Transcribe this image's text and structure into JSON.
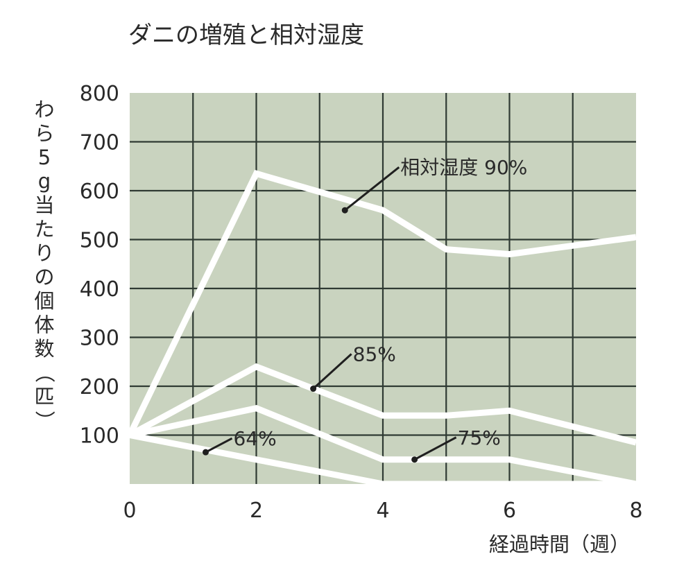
{
  "chart_data": {
    "type": "line",
    "title": "ダニの増殖と相対湿度",
    "xlabel": "経過時間（週）",
    "ylabel": "わら5g当たりの個体数（匹）",
    "x": [
      0,
      2,
      4,
      5,
      6,
      8
    ],
    "xticks": [
      "0",
      "2",
      "4",
      "6",
      "8"
    ],
    "yticks": [
      "100",
      "200",
      "300",
      "400",
      "500",
      "600",
      "700",
      "800"
    ],
    "xlim": [
      0,
      8
    ],
    "ylim": [
      0,
      800
    ],
    "grid": true,
    "series": [
      {
        "name": "相対湿度 90%",
        "values": [
          100,
          635,
          560,
          480,
          470,
          505
        ]
      },
      {
        "name": "85%",
        "values": [
          100,
          240,
          140,
          140,
          150,
          85
        ]
      },
      {
        "name": "75%",
        "values": [
          100,
          155,
          50,
          50,
          50,
          0
        ]
      },
      {
        "name": "64%",
        "values": [
          100,
          50,
          0,
          0,
          0,
          0
        ]
      }
    ],
    "annotations": [
      {
        "text": "相対湿度 90%",
        "series": 0,
        "x": 3.4,
        "y": 560
      },
      {
        "text": "85%",
        "series": 1,
        "x": 2.9,
        "y": 195
      },
      {
        "text": "75%",
        "series": 2,
        "x": 4.5,
        "y": 50
      },
      {
        "text": "64%",
        "series": 3,
        "x": 1.2,
        "y": 65
      }
    ],
    "colors": {
      "plot_background": "#c9d3bf",
      "grid": "#2f3a33",
      "line": "#ffffff",
      "text": "#2a2a2a"
    }
  }
}
